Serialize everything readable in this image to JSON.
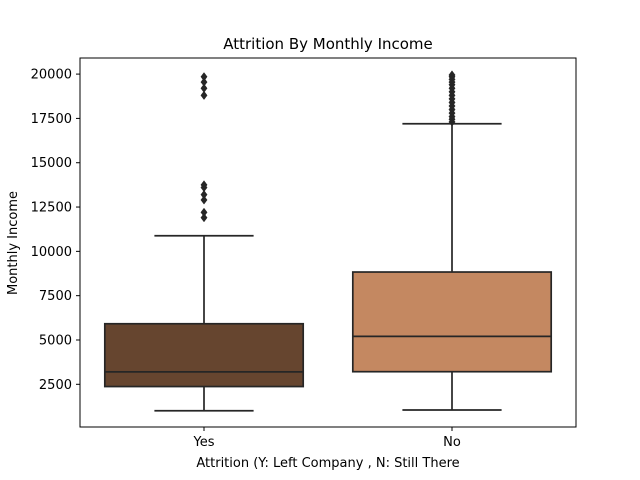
{
  "chart_data": {
    "type": "box",
    "title": "Attrition By Monthly Income",
    "xlabel": "Attrition (Y: Left Company , N: Still There",
    "ylabel": "Monthly Income",
    "ylim": [
      0,
      21000
    ],
    "yticks": [
      2500,
      5000,
      7500,
      10000,
      12500,
      15000,
      17500,
      20000
    ],
    "categories": [
      "Yes",
      "No"
    ],
    "grid": false,
    "series": [
      {
        "category": "Yes",
        "color": "#66452f",
        "whisker_low": 1009,
        "q1": 2373,
        "median": 3202,
        "q3": 5916,
        "whisker_high": 10880,
        "outliers": [
          11900,
          12200,
          12900,
          13200,
          13600,
          13750,
          18800,
          19200,
          19550,
          19850
        ]
      },
      {
        "category": "No",
        "color": "#c48861",
        "whisker_low": 1051,
        "q1": 3211,
        "median": 5204,
        "q3": 8834,
        "whisker_high": 17200,
        "outliers": [
          17300,
          17450,
          17600,
          17800,
          18000,
          18200,
          18400,
          18600,
          18800,
          19000,
          19200,
          19400,
          19550,
          19700,
          19850,
          19950
        ]
      }
    ]
  }
}
